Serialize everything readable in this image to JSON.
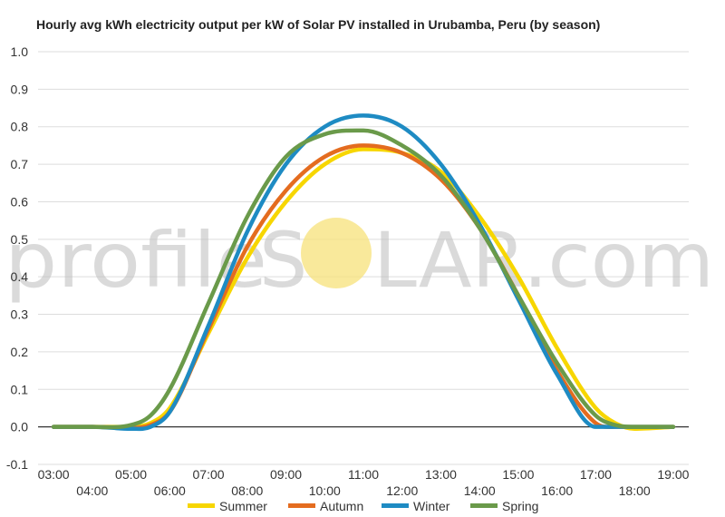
{
  "chart_data": {
    "type": "line",
    "title": "Hourly avg kWh electricity output per kW of Solar PV installed in Urubamba, Peru (by season)",
    "xlabel": "",
    "ylabel": "",
    "ylim": [
      -0.1,
      1.0
    ],
    "yticks": [
      "-0.1",
      "0.0",
      "0.1",
      "0.2",
      "0.3",
      "0.4",
      "0.5",
      "0.6",
      "0.7",
      "0.8",
      "0.9",
      "1.0"
    ],
    "xlim": [
      2.6,
      19.4
    ],
    "xticks": [
      "03:00",
      "04:00",
      "05:00",
      "06:00",
      "07:00",
      "08:00",
      "09:00",
      "10:00",
      "11:00",
      "12:00",
      "13:00",
      "14:00",
      "15:00",
      "16:00",
      "17:00",
      "18:00",
      "19:00"
    ],
    "grid": true,
    "legend_position": "bottom",
    "series": [
      {
        "name": "Summer",
        "color": "#f7d600",
        "x": [
          3,
          4,
          5,
          5.5,
          6,
          7,
          8,
          9,
          10,
          11,
          12,
          13,
          14,
          15,
          16,
          17,
          17.5,
          18,
          19
        ],
        "values": [
          0.0,
          0.0,
          0.0,
          0.01,
          0.05,
          0.25,
          0.45,
          0.6,
          0.7,
          0.74,
          0.73,
          0.68,
          0.56,
          0.4,
          0.21,
          0.05,
          0.01,
          -0.005,
          0.0
        ]
      },
      {
        "name": "Autumn",
        "color": "#e46c1f",
        "x": [
          3,
          4,
          5,
          5.5,
          6,
          7,
          8,
          9,
          10,
          11,
          12,
          13,
          14,
          15,
          16,
          17,
          17.5,
          18,
          19
        ],
        "values": [
          0.0,
          0.0,
          -0.003,
          0.005,
          0.04,
          0.26,
          0.48,
          0.63,
          0.72,
          0.75,
          0.73,
          0.66,
          0.53,
          0.35,
          0.15,
          0.01,
          0.0,
          0.0,
          0.0
        ]
      },
      {
        "name": "Winter",
        "color": "#1e8bc3",
        "x": [
          3,
          4,
          5,
          5.5,
          6,
          7,
          8,
          9,
          10,
          11,
          12,
          13,
          14,
          15,
          16,
          17,
          17.5,
          18,
          19
        ],
        "values": [
          0.0,
          0.0,
          -0.005,
          0.0,
          0.04,
          0.27,
          0.52,
          0.7,
          0.8,
          0.83,
          0.8,
          0.7,
          0.54,
          0.34,
          0.14,
          0.0,
          0.0,
          0.0,
          0.0
        ]
      },
      {
        "name": "Spring",
        "color": "#6a9a4a",
        "x": [
          3,
          4,
          5,
          5.5,
          6,
          7,
          8,
          9,
          10,
          11,
          12,
          13,
          14,
          15,
          16,
          17,
          17.5,
          18,
          19
        ],
        "values": [
          0.0,
          0.0,
          0.005,
          0.03,
          0.1,
          0.33,
          0.56,
          0.72,
          0.78,
          0.79,
          0.75,
          0.67,
          0.53,
          0.35,
          0.17,
          0.03,
          0.005,
          0.0,
          0.0
        ]
      }
    ]
  },
  "watermark": {
    "text_left": "profile",
    "text_right": "LAR.com",
    "sun_color": "#f7e27a"
  }
}
